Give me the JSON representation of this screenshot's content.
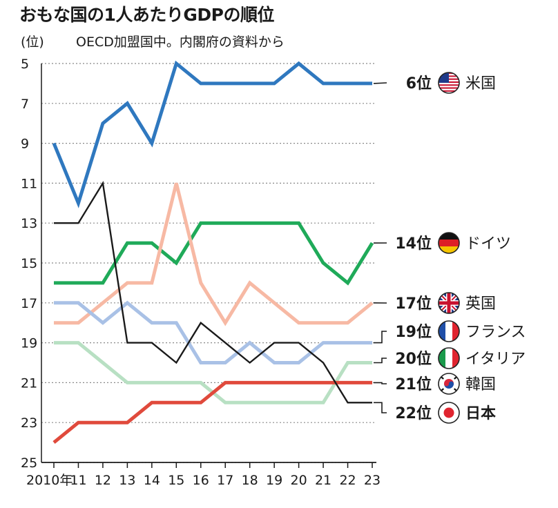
{
  "title": "おもな国の1人あたりGDPの順位",
  "subtitle": "OECD加盟国中。内閣府の資料から",
  "y_unit": "(位)",
  "chart_data": {
    "type": "line",
    "title": "おもな国の1人あたりGDPの順位",
    "subtitle": "OECD加盟国中。内閣府の資料から",
    "ylabel": "(位)",
    "xlabel": "",
    "x": [
      2010,
      2011,
      2012,
      2013,
      2014,
      2015,
      2016,
      2017,
      2018,
      2019,
      2020,
      2021,
      2022,
      2023
    ],
    "x_tick_labels": [
      "2010年",
      "11",
      "12",
      "13",
      "14",
      "15",
      "16",
      "17",
      "18",
      "19",
      "20",
      "21",
      "22",
      "23"
    ],
    "ylim": [
      5,
      25
    ],
    "y_reversed": true,
    "y_ticks": [
      5,
      7,
      9,
      11,
      13,
      15,
      17,
      19,
      21,
      23,
      25
    ],
    "grid": "horizontal dotted",
    "series": [
      {
        "name": "米国",
        "rank_label": "6位",
        "color": "#2f78bf",
        "flag": "us-flag-icon",
        "values": [
          9,
          12,
          8,
          7,
          9,
          5,
          6,
          6,
          6,
          6,
          5,
          6,
          6,
          6
        ]
      },
      {
        "name": "ドイツ",
        "rank_label": "14位",
        "color": "#1faa59",
        "flag": "germany-flag-icon",
        "values": [
          16,
          16,
          16,
          14,
          14,
          15,
          13,
          13,
          13,
          13,
          13,
          15,
          16,
          14
        ]
      },
      {
        "name": "英国",
        "rank_label": "17位",
        "color": "#f7b9a4",
        "flag": "uk-flag-icon",
        "values": [
          18,
          18,
          17,
          16,
          16,
          11,
          16,
          18,
          16,
          17,
          18,
          18,
          18,
          17
        ]
      },
      {
        "name": "フランス",
        "rank_label": "19位",
        "color": "#a9c1e6",
        "flag": "france-flag-icon",
        "values": [
          17,
          17,
          18,
          17,
          18,
          18,
          20,
          20,
          19,
          20,
          20,
          19,
          19,
          19
        ]
      },
      {
        "name": "イタリア",
        "rank_label": "20位",
        "color": "#b8e0c3",
        "flag": "italy-flag-icon",
        "values": [
          19,
          19,
          20,
          21,
          21,
          21,
          21,
          22,
          22,
          22,
          22,
          22,
          20,
          20
        ]
      },
      {
        "name": "韓国",
        "rank_label": "21位",
        "color": "#e04a3c",
        "flag": "korea-flag-icon",
        "values": [
          24,
          23,
          23,
          23,
          22,
          22,
          22,
          21,
          21,
          21,
          21,
          21,
          21,
          21
        ]
      },
      {
        "name": "日本",
        "rank_label": "22位",
        "color": "#1a1a1a",
        "flag": "japan-flag-icon",
        "bold_name": true,
        "values": [
          13,
          13,
          11,
          19,
          19,
          20,
          18,
          19,
          20,
          19,
          19,
          20,
          22,
          22
        ]
      }
    ]
  }
}
